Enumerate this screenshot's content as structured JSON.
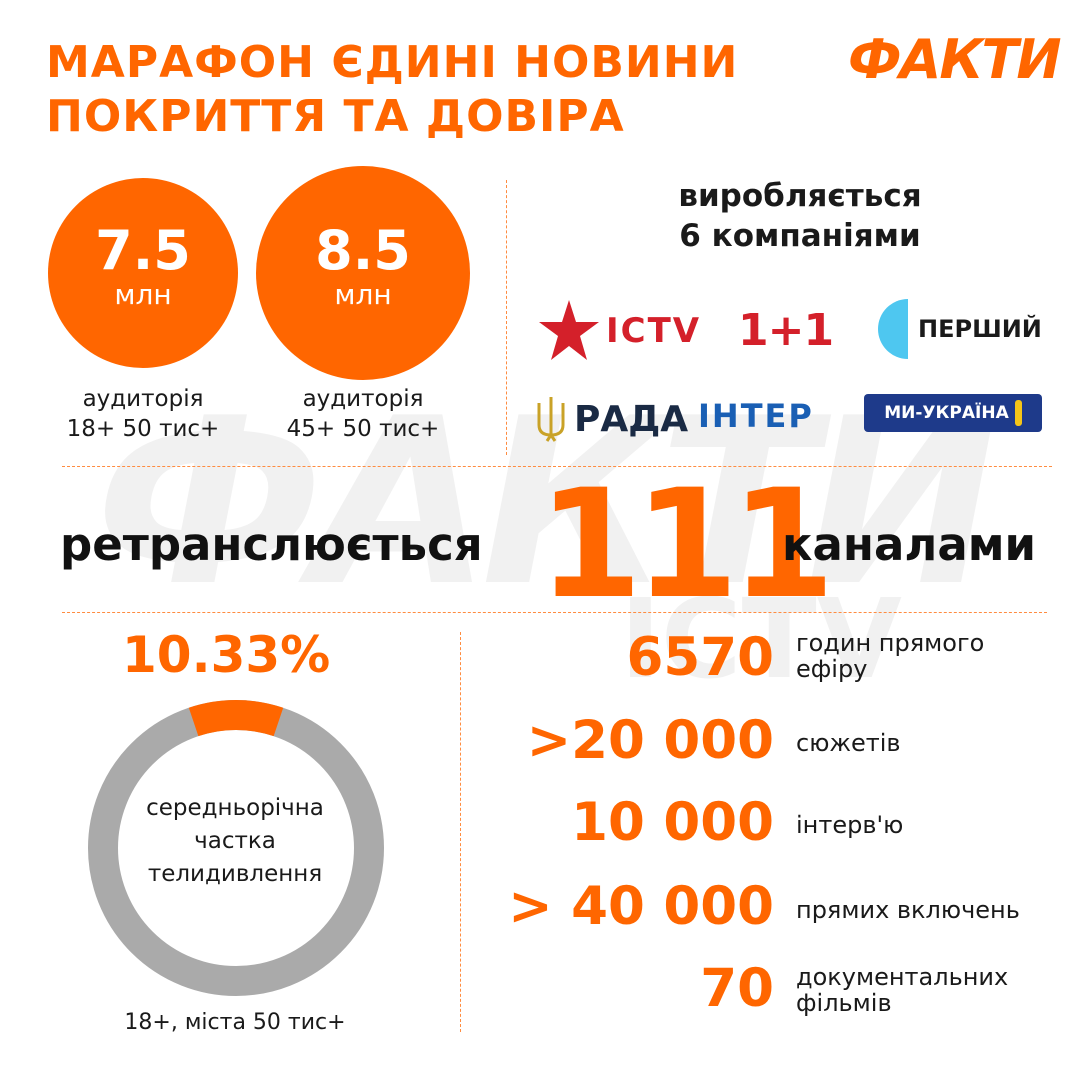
{
  "header": {
    "title_line1": "МАРАФОН ЄДИНІ НОВИНИ",
    "title_line2": "ПОКРИТТЯ ТА ДОВІРА",
    "brand": "ФАКТИ"
  },
  "audience": [
    {
      "value": "7.5",
      "unit": "млн",
      "caption_line1": "аудиторія",
      "caption_line2": "18+ 50 тис+"
    },
    {
      "value": "8.5",
      "unit": "млн",
      "caption_line1": "аудиторія",
      "caption_line2": "45+ 50 тис+"
    }
  ],
  "producers": {
    "heading_line1": "виробляється",
    "heading_line2": "6 компаніями",
    "logos": [
      "ICTV",
      "1+1",
      "ПЕРШИЙ",
      "РАДА",
      "ІНТЕР",
      "МИ-УКРАЇНА"
    ]
  },
  "retransmission": {
    "prefix": "ретранслюється",
    "count": "111",
    "suffix": "каналами"
  },
  "tv_share": {
    "percent_label": "10.33%",
    "percent_value": 10.33,
    "label_line1": "середньорічна",
    "label_line2": "частка",
    "label_line3": "телидивлення",
    "caption": "18+, міста 50 тис+",
    "colors": {
      "accent": "#ff6600",
      "rest": "#aaaaaa"
    }
  },
  "stats": [
    {
      "value": "6570",
      "label_line1": "годин прямого",
      "label_line2": "ефіру"
    },
    {
      "value": ">20 000",
      "label_line1": "сюжетів",
      "label_line2": ""
    },
    {
      "value": "10 000",
      "label_line1": "інтерв'ю",
      "label_line2": ""
    },
    {
      "value": "> 40 000",
      "label_line1": "прямих включень",
      "label_line2": ""
    },
    {
      "value": "70",
      "label_line1": "документальних",
      "label_line2": "фільмів"
    }
  ],
  "colors": {
    "accent": "#ff6600",
    "text": "#1a1a1a",
    "interblue": "#1a5fb4",
    "red": "#d4202a"
  }
}
